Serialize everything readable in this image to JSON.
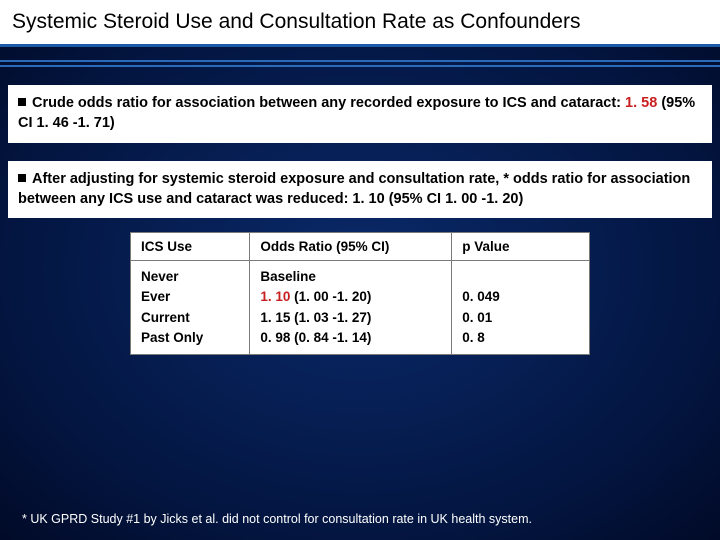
{
  "title": "Systemic Steroid Use and Consultation Rate as Confounders",
  "bullet1_pre": "Crude odds ratio for association between any recorded exposure to ICS and cataract: ",
  "bullet1_val": "1. 58",
  "bullet1_post": " (95% CI 1. 46 -1. 71)",
  "bullet2": "After adjusting for systemic steroid exposure and consultation rate, * odds ratio for association between any ICS use and cataract was reduced: 1. 10 (95% CI 1. 00 -1. 20)",
  "table": {
    "headers": [
      "ICS Use",
      "Odds Ratio (95% CI)",
      "p Value"
    ],
    "col1_lines": [
      "Never",
      "Ever",
      "Current",
      "Past Only"
    ],
    "col2_line1": "Baseline",
    "col2_line2_red": "1. 10",
    "col2_line2_rest": " (1. 00 -1. 20)",
    "col2_line3": "1. 15 (1. 03 -1. 27)",
    "col2_line4": "0. 98 (0. 84 -1. 14)",
    "col3_lines": [
      "",
      "0. 049",
      "0. 01",
      "0. 8"
    ]
  },
  "footnote": "* UK GPRD Study #1 by Jicks et al. did not control for consultation rate in UK health system.",
  "colors": {
    "bg_center": "#0a2a6a",
    "bg_edge": "#010a28",
    "rule": "#2a6ab8",
    "red": "#c82020"
  }
}
